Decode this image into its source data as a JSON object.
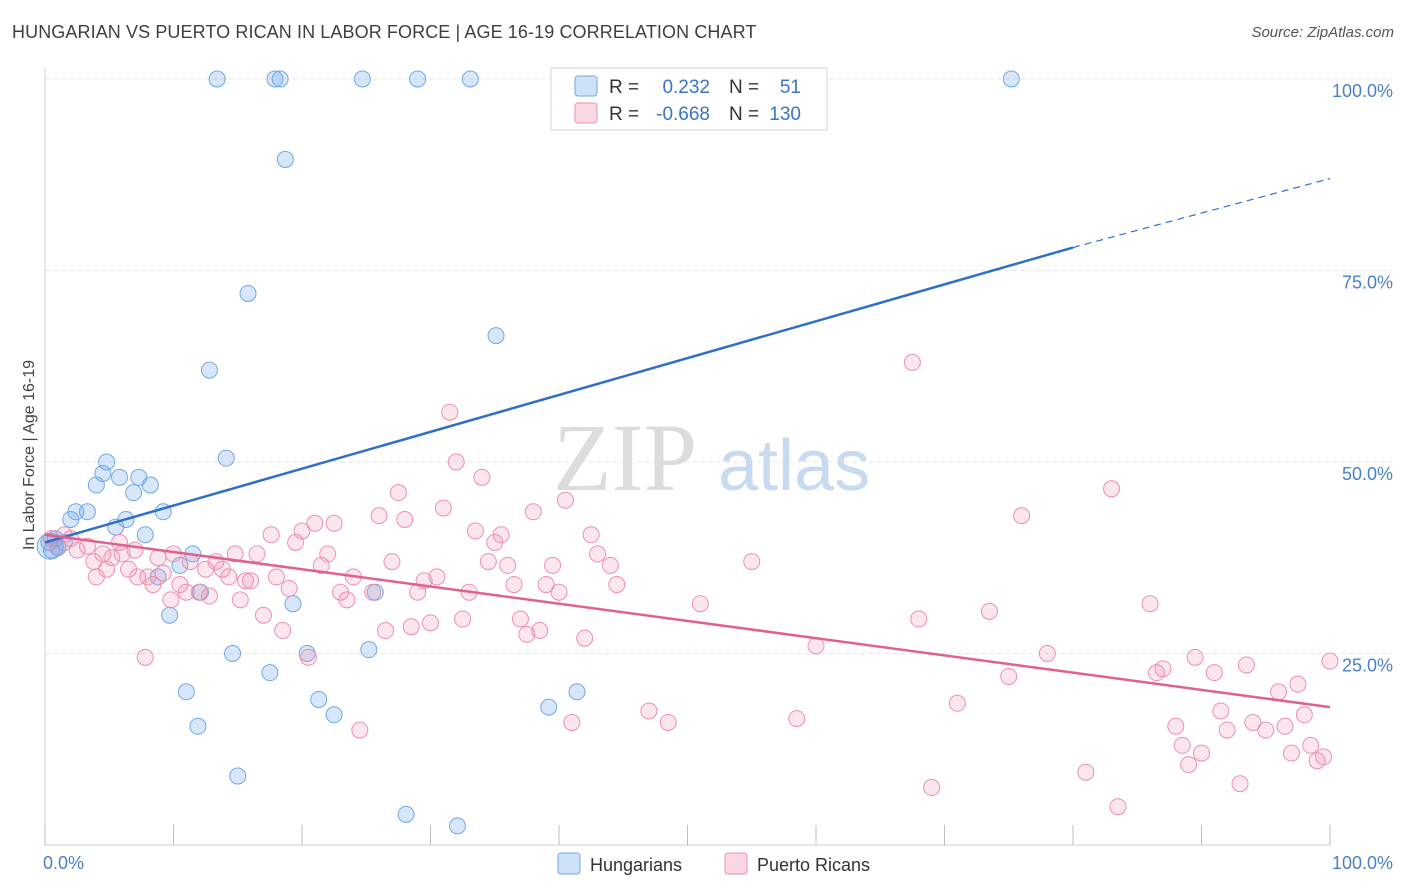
{
  "title": "HUNGARIAN VS PUERTO RICAN IN LABOR FORCE | AGE 16-19 CORRELATION CHART",
  "source": "Source: ZipAtlas.com",
  "watermark": {
    "zip": "ZIP",
    "atlas": "atlas"
  },
  "colors": {
    "blue": "#6fa8e8",
    "blue_fill": "rgba(111,168,232,0.28)",
    "blue_line": "#2f6fc8",
    "pink": "#ee8fae",
    "pink_fill": "rgba(238,143,174,0.22)",
    "pink_line": "#e0618f",
    "tick_label": "#4a80c8",
    "grid": "#e3e3e3"
  },
  "legend": {
    "rows": [
      {
        "r_label": "R =",
        "r_value": "0.232",
        "n_label": "N =",
        "n_value": "51"
      },
      {
        "r_label": "R =",
        "r_value": "-0.668",
        "n_label": "N =",
        "n_value": "130"
      }
    ]
  },
  "chart_data": {
    "type": "scatter",
    "title": "HUNGARIAN VS PUERTO RICAN IN LABOR FORCE | AGE 16-19 CORRELATION CHART",
    "xlabel": "",
    "ylabel": "In Labor Force | Age 16-19",
    "xlim": [
      0,
      100
    ],
    "ylim": [
      0,
      100
    ],
    "x_tick_labels": [
      "0.0%",
      "100.0%"
    ],
    "y_tick_values": [
      25,
      50,
      75,
      100
    ],
    "y_tick_labels": [
      "25.0%",
      "50.0%",
      "75.0%",
      "100.0%"
    ],
    "grid": true,
    "legend_position": "bottom",
    "series": [
      {
        "name": "Hungarians",
        "r": 0.232,
        "n": 51,
        "trend": {
          "x_start": 0,
          "y_start": 39.5,
          "x_end": 80,
          "y_end": 78,
          "dashed_to_x": 100,
          "dashed_to_y": 87
        },
        "points": [
          [
            0.3,
            39.5
          ],
          [
            0.5,
            38.5
          ],
          [
            0.8,
            40
          ],
          [
            1,
            38.8
          ],
          [
            1.5,
            39.5
          ],
          [
            2,
            42.5
          ],
          [
            2.4,
            43.5
          ],
          [
            3.3,
            43.5
          ],
          [
            4.0,
            47
          ],
          [
            4.5,
            48.5
          ],
          [
            4.8,
            50
          ],
          [
            5.5,
            41.5
          ],
          [
            5.8,
            48
          ],
          [
            6.3,
            42.5
          ],
          [
            6.9,
            46
          ],
          [
            7.3,
            48
          ],
          [
            7.8,
            40.5
          ],
          [
            8.2,
            47
          ],
          [
            8.8,
            35
          ],
          [
            9.2,
            43.5
          ],
          [
            9.7,
            30
          ],
          [
            10.5,
            36.5
          ],
          [
            11,
            20
          ],
          [
            11.5,
            38
          ],
          [
            11.9,
            15.5
          ],
          [
            12.1,
            33
          ],
          [
            12.8,
            62
          ],
          [
            13.4,
            100
          ],
          [
            14.1,
            50.5
          ],
          [
            14.6,
            25
          ],
          [
            15.0,
            9
          ],
          [
            15.8,
            72
          ],
          [
            17.5,
            22.5
          ],
          [
            17.9,
            100
          ],
          [
            18.3,
            100
          ],
          [
            18.7,
            89.5
          ],
          [
            19.3,
            31.5
          ],
          [
            20.4,
            25
          ],
          [
            21.3,
            19
          ],
          [
            22.5,
            17
          ],
          [
            24.7,
            100
          ],
          [
            25.2,
            25.5
          ],
          [
            25.7,
            33
          ],
          [
            29.0,
            100
          ],
          [
            28.1,
            4
          ],
          [
            33.1,
            100
          ],
          [
            32.1,
            2.5
          ],
          [
            35.1,
            66.5
          ],
          [
            39.2,
            18
          ],
          [
            41.4,
            20
          ],
          [
            75.2,
            100
          ]
        ]
      },
      {
        "name": "Puerto Ricans",
        "r": -0.668,
        "n": 130,
        "trend": {
          "x_start": 0,
          "y_start": 40.5,
          "x_end": 100,
          "y_end": 18
        },
        "points": [
          [
            0.5,
            40
          ],
          [
            1.0,
            39
          ],
          [
            1.5,
            40.5
          ],
          [
            2.0,
            40
          ],
          [
            2.5,
            38.5
          ],
          [
            3.3,
            39
          ],
          [
            3.8,
            37
          ],
          [
            4.0,
            35
          ],
          [
            4.5,
            38
          ],
          [
            4.8,
            36
          ],
          [
            5.2,
            37.5
          ],
          [
            5.8,
            39.5
          ],
          [
            6.0,
            38
          ],
          [
            6.5,
            36
          ],
          [
            7.0,
            38.5
          ],
          [
            7.2,
            35
          ],
          [
            7.8,
            24.5
          ],
          [
            8.0,
            35
          ],
          [
            8.4,
            34
          ],
          [
            8.8,
            37.5
          ],
          [
            9.2,
            35.5
          ],
          [
            9.8,
            32
          ],
          [
            10.0,
            38
          ],
          [
            10.5,
            34
          ],
          [
            11.0,
            33
          ],
          [
            11.3,
            37
          ],
          [
            12.0,
            33
          ],
          [
            12.5,
            36
          ],
          [
            12.8,
            32.5
          ],
          [
            13.3,
            37
          ],
          [
            13.8,
            36
          ],
          [
            14.3,
            35
          ],
          [
            14.8,
            38
          ],
          [
            15.2,
            32
          ],
          [
            15.6,
            34.5
          ],
          [
            16.0,
            34.5
          ],
          [
            16.5,
            38
          ],
          [
            17.0,
            30
          ],
          [
            17.6,
            40.5
          ],
          [
            18.0,
            35
          ],
          [
            18.5,
            28
          ],
          [
            19.0,
            33.5
          ],
          [
            19.5,
            39.5
          ],
          [
            20.0,
            41
          ],
          [
            20.5,
            24.5
          ],
          [
            21.0,
            42
          ],
          [
            21.5,
            36.5
          ],
          [
            22.0,
            38
          ],
          [
            22.5,
            42
          ],
          [
            23.0,
            33
          ],
          [
            23.5,
            32
          ],
          [
            24.0,
            35
          ],
          [
            24.5,
            15
          ],
          [
            25.5,
            33
          ],
          [
            26.0,
            43
          ],
          [
            26.5,
            28
          ],
          [
            27.0,
            37
          ],
          [
            27.5,
            46
          ],
          [
            28.0,
            42.5
          ],
          [
            28.5,
            28.5
          ],
          [
            29.0,
            33
          ],
          [
            29.5,
            34.5
          ],
          [
            30.0,
            29
          ],
          [
            30.5,
            35
          ],
          [
            31.0,
            44
          ],
          [
            31.5,
            56.5
          ],
          [
            32.0,
            50
          ],
          [
            32.5,
            29.5
          ],
          [
            33.0,
            33
          ],
          [
            33.5,
            41
          ],
          [
            34.0,
            48
          ],
          [
            34.5,
            37
          ],
          [
            35.0,
            39.5
          ],
          [
            35.5,
            40.5
          ],
          [
            36.0,
            36.5
          ],
          [
            36.5,
            34
          ],
          [
            37.0,
            29.5
          ],
          [
            37.5,
            27.5
          ],
          [
            38.0,
            43.5
          ],
          [
            38.5,
            28
          ],
          [
            39.0,
            34
          ],
          [
            39.5,
            36.5
          ],
          [
            40.0,
            33
          ],
          [
            40.5,
            45
          ],
          [
            41.0,
            16
          ],
          [
            42.0,
            27
          ],
          [
            42.5,
            40.5
          ],
          [
            43.0,
            38
          ],
          [
            44.0,
            36.5
          ],
          [
            44.5,
            34
          ],
          [
            47.0,
            17.5
          ],
          [
            48.5,
            16
          ],
          [
            51.0,
            31.5
          ],
          [
            55.0,
            37
          ],
          [
            58.5,
            16.5
          ],
          [
            60.0,
            26
          ],
          [
            67.5,
            63
          ],
          [
            68.0,
            29.5
          ],
          [
            69.0,
            7.5
          ],
          [
            71.0,
            18.5
          ],
          [
            73.5,
            30.5
          ],
          [
            75.0,
            22
          ],
          [
            76.0,
            43
          ],
          [
            78.0,
            25
          ],
          [
            81.0,
            9.5
          ],
          [
            83.0,
            46.5
          ],
          [
            83.5,
            5
          ],
          [
            86.0,
            31.5
          ],
          [
            86.5,
            22.5
          ],
          [
            87.0,
            23
          ],
          [
            88.0,
            15.5
          ],
          [
            88.5,
            13
          ],
          [
            89.0,
            10.5
          ],
          [
            89.5,
            24.5
          ],
          [
            90.0,
            12
          ],
          [
            91.0,
            22.5
          ],
          [
            91.5,
            17.5
          ],
          [
            92.0,
            15
          ],
          [
            93.0,
            8
          ],
          [
            93.5,
            23.5
          ],
          [
            94.0,
            16
          ],
          [
            95.0,
            15
          ],
          [
            96.0,
            20
          ],
          [
            96.5,
            15.5
          ],
          [
            97.0,
            12
          ],
          [
            97.5,
            21
          ],
          [
            98.0,
            17
          ],
          [
            98.5,
            13
          ],
          [
            99.0,
            11
          ],
          [
            99.5,
            11.5
          ],
          [
            100.0,
            24
          ]
        ]
      }
    ]
  },
  "legend_bottom": [
    {
      "label": "Hungarians"
    },
    {
      "label": "Puerto Ricans"
    }
  ]
}
